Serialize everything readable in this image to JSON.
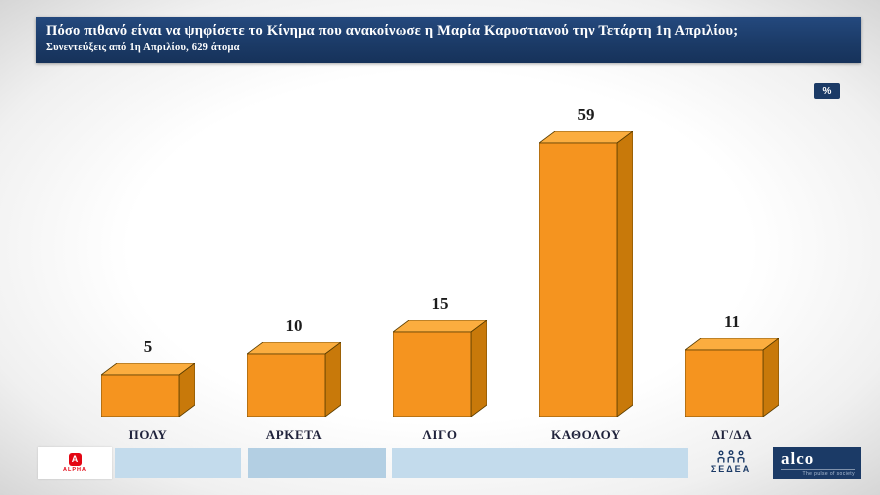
{
  "header": {
    "title": "Πόσο πιθανό είναι να ψηφίσετε το Κίνημα που ανακοίνωσε η Μαρία Καρυστιανού την Τετάρτη 1η Απριλίου;",
    "subtitle": "Συνεντεύξεις από 1η Απριλίου, 629 άτομα",
    "unit_badge": "%"
  },
  "chart_data": {
    "type": "bar",
    "title": "Πόσο πιθανό είναι να ψηφίσετε το Κίνημα που ανακοίνωσε η Μαρία Καρυστιανού την Τετάρτη 1η Απριλίου;",
    "subtitle": "Συνεντεύξεις από 1η Απριλίου, 629 άτομα",
    "categories": [
      "ΠΟΛΥ",
      "ΑΡΚΕΤΑ",
      "ΛΙΓΟ",
      "ΚΑΘΟΛΟΥ",
      "ΔΓ/ΔΑ"
    ],
    "values": [
      5,
      10,
      15,
      59,
      11
    ],
    "unit": "%",
    "xlabel": "",
    "ylabel": "",
    "ylim": [
      0,
      65
    ],
    "grid": false,
    "legend": "none",
    "bar_style": "3d-box",
    "colors": {
      "front": "#F5941F",
      "top": "#FBAD3F",
      "side": "#C8790A",
      "outline": "#5a3d00"
    }
  },
  "footer": {
    "alpha_glyph": "A",
    "alpha_label": "ALPHA",
    "sedea_label": "ΣΕΔΕΑ",
    "alco_label": "alco",
    "alco_tagline": "The pulse of society"
  },
  "colors": {
    "banner": "#1b3a66",
    "strip_light": "#c3dbec",
    "strip_mid": "#b3cfe3",
    "alpha_red": "#e30613"
  }
}
